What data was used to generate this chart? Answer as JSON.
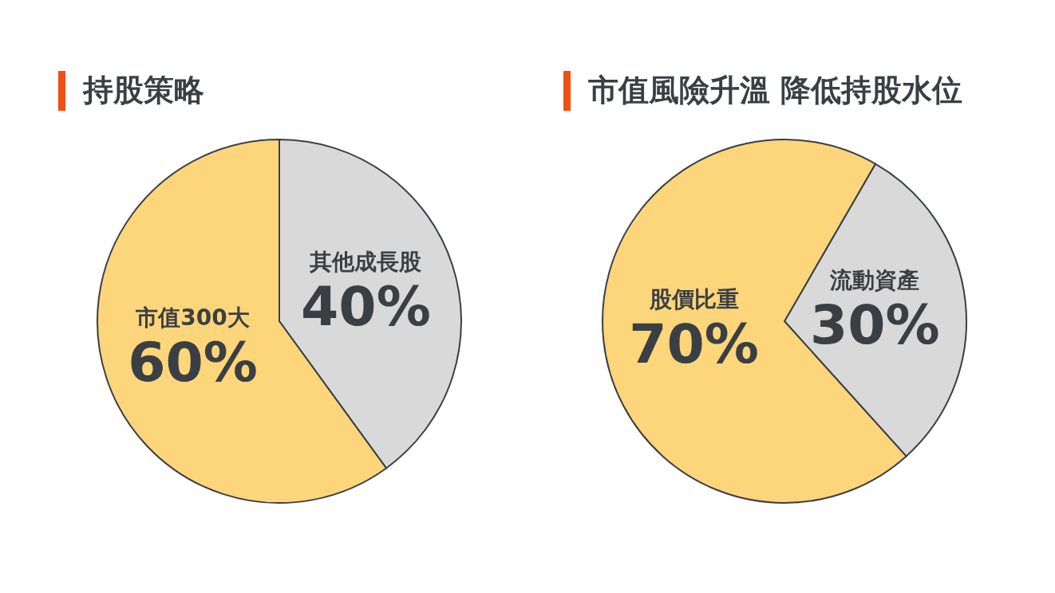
{
  "chart_data": [
    {
      "type": "pie",
      "title": "持股策略",
      "categories": [
        "其他成長股",
        "市值300大"
      ],
      "values": [
        40,
        60
      ],
      "colors": [
        "#d9d9d9",
        "#fdd57a"
      ],
      "value_labels": [
        "40%",
        "60%"
      ]
    },
    {
      "type": "pie",
      "title": "市值風險升溫 降低持股水位",
      "categories": [
        "流動資產",
        "股價比重"
      ],
      "values": [
        30,
        70
      ],
      "colors": [
        "#d9d9d9",
        "#fdd57a"
      ],
      "value_labels": [
        "30%",
        "70%"
      ]
    }
  ]
}
